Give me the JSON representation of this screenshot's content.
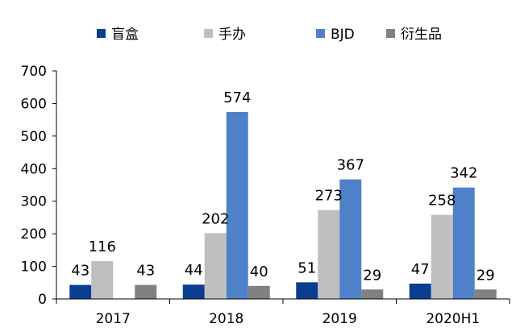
{
  "chart_data": {
    "type": "bar",
    "categories": [
      "2017",
      "2018",
      "2019",
      "2020H1"
    ],
    "series": [
      {
        "name": "盲盒",
        "color": "#0B3D91",
        "values": [
          43,
          44,
          51,
          47
        ]
      },
      {
        "name": "手办",
        "color": "#BFBFBF",
        "values": [
          116,
          202,
          273,
          258
        ]
      },
      {
        "name": "BJD",
        "color": "#4F81C9",
        "values": [
          null,
          574,
          367,
          342
        ]
      },
      {
        "name": "衍生品",
        "color": "#808080",
        "values": [
          43,
          40,
          29,
          29
        ]
      }
    ],
    "ylim": [
      0,
      700
    ],
    "yticks": [
      0,
      100,
      200,
      300,
      400,
      500,
      600,
      700
    ],
    "legend_position": "top",
    "grid": false,
    "data_labels": true
  }
}
